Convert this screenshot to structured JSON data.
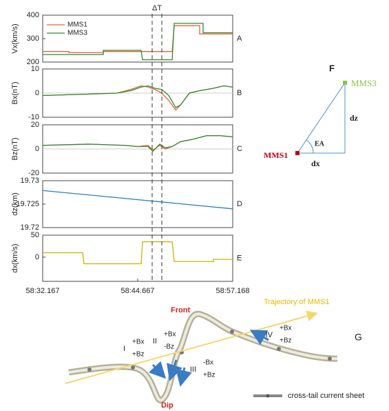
{
  "chart_data": [
    {
      "type": "line",
      "ylabel": "Vx(km/s)",
      "annotation": "A",
      "ylim": [
        200,
        400
      ],
      "yticks": [
        200,
        300,
        400
      ],
      "xlim": [
        32.167,
        57.168
      ],
      "vlines": {
        "label": "ΔT",
        "x": [
          46.57,
          47.84
        ]
      },
      "series": [
        {
          "name": "MMS1",
          "color": "#e8603a",
          "x": [
            32.167,
            35.61,
            35.61,
            40.14,
            40.14,
            49.2,
            49.47,
            52.82,
            52.82,
            57.168
          ],
          "values": [
            245,
            245,
            240,
            240,
            245,
            245,
            355,
            355,
            320,
            320
          ]
        },
        {
          "name": "MMS3",
          "color": "#2e8b2e",
          "x": [
            32.167,
            40.14,
            40.14,
            45.12,
            45.3,
            49.2,
            49.47,
            53.27,
            53.27,
            57.168
          ],
          "values": [
            232,
            232,
            250,
            250,
            210,
            210,
            365,
            365,
            325,
            325
          ]
        }
      ]
    },
    {
      "type": "line",
      "ylabel": "Bx(nT)",
      "annotation": "B",
      "ylim": [
        -10,
        10
      ],
      "yticks": [
        -10,
        0,
        10
      ],
      "xlim": [
        32.167,
        57.168
      ],
      "zero_line": true,
      "series": [
        {
          "name": "MMS1",
          "color": "#e8603a",
          "x": [
            32.167,
            37.42,
            41.95,
            43.76,
            45.12,
            46.03,
            46.94,
            47.84,
            48.75,
            49.66,
            50.29,
            51.47,
            52.82,
            54.63,
            55.99,
            57.168
          ],
          "values": [
            -1,
            -0.5,
            0,
            1.5,
            3,
            2.5,
            1.5,
            0,
            -3,
            -7,
            -5,
            0,
            1,
            2,
            3,
            2.5
          ]
        },
        {
          "name": "MMS3",
          "color": "#2e8b2e",
          "x": [
            32.167,
            37.42,
            41.95,
            43.76,
            45.12,
            46.03,
            46.94,
            47.84,
            48.75,
            49.66,
            50.29,
            51.47,
            52.82,
            54.63,
            55.99,
            57.168
          ],
          "values": [
            -1,
            -0.5,
            0,
            1,
            2.5,
            3,
            2,
            1.5,
            -1,
            -6,
            -5,
            0,
            1,
            2,
            3,
            2.5
          ]
        }
      ]
    },
    {
      "type": "line",
      "ylabel": "Bz(nT)",
      "annotation": "C",
      "ylim": [
        -20,
        20
      ],
      "yticks": [
        -20,
        0,
        20
      ],
      "xlim": [
        32.167,
        57.168
      ],
      "zero_line": true,
      "series": [
        {
          "name": "MMS1",
          "color": "#e8603a",
          "x": [
            32.167,
            38.33,
            42.86,
            44.67,
            46.03,
            46.66,
            47.57,
            48.29,
            49.2,
            50.29,
            51.92,
            53.73,
            55.54,
            57.168
          ],
          "values": [
            3,
            4,
            3,
            2,
            3,
            -1,
            3,
            0,
            2,
            6,
            8,
            11,
            11,
            10
          ]
        },
        {
          "name": "MMS3",
          "color": "#2e8b2e",
          "x": [
            32.167,
            38.33,
            42.86,
            44.67,
            46.03,
            46.66,
            47.57,
            48.29,
            49.2,
            50.29,
            51.92,
            53.73,
            55.54,
            57.168
          ],
          "values": [
            3,
            4,
            3,
            2,
            2,
            -2,
            4,
            1,
            2,
            6,
            8,
            11,
            11,
            10
          ]
        }
      ]
    },
    {
      "type": "line",
      "ylabel": "dz(km)",
      "annotation": "D",
      "ylim": [
        19.72,
        19.73
      ],
      "yticks": [
        19.72,
        19.725,
        19.73
      ],
      "xlim": [
        32.167,
        57.168
      ],
      "series": [
        {
          "name": "dz",
          "color": "#2a7fc4",
          "x": [
            32.167,
            57.168
          ],
          "values": [
            19.7279,
            19.724
          ]
        }
      ]
    },
    {
      "type": "line",
      "ylabel": "dx(km/s)",
      "annotation": "E",
      "ylim": [
        -55,
        50
      ],
      "yticks": [
        0,
        50
      ],
      "xlim": [
        32.167,
        57.168
      ],
      "xticks": [
        {
          "value": 32.167,
          "label": "58:32.167"
        },
        {
          "value": 44.667,
          "label": "58:44.667"
        },
        {
          "value": 57.168,
          "label": "58:57.168"
        }
      ],
      "series": [
        {
          "name": "dx",
          "color": "#c8b400",
          "x": [
            32.167,
            37.42,
            37.6,
            45.12,
            45.3,
            49.2,
            49.47,
            54.63,
            54.63,
            57.168
          ],
          "values": [
            10,
            10,
            -15,
            -15,
            35,
            35,
            -10,
            -10,
            -5,
            -5
          ]
        }
      ]
    }
  ],
  "diagram_f": {
    "label": "F",
    "mms3": "MMS3",
    "mms1": "MMS1",
    "dz": "dz",
    "dx": "dx",
    "angle": "EA"
  },
  "diagram_g": {
    "label": "G",
    "front": "Front",
    "dip": "Dip",
    "trajectory": "Trajectory of MMS1",
    "legend": "cross-tail current sheet",
    "regions": [
      {
        "name": "I",
        "b1": "+Bx",
        "b2": "+Bz"
      },
      {
        "name": "II",
        "b1": "+Bx",
        "b2": "-Bz"
      },
      {
        "name": "III",
        "b1": "-Bx",
        "b2": "+Bz"
      },
      {
        "name": "IV",
        "b1": "+Bx",
        "b2": "+Bz"
      }
    ]
  }
}
